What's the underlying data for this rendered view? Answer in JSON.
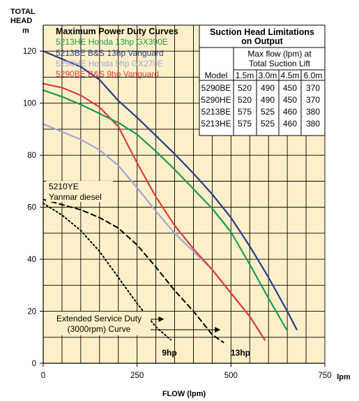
{
  "chart_data": {
    "type": "line",
    "xlabel": "FLOW (lpm)",
    "x_unit": "lpm",
    "ylabel": "TOTAL HEAD",
    "y_unit": "m",
    "xlim": [
      0,
      750
    ],
    "ylim": [
      0,
      130
    ],
    "x_ticks": [
      "0",
      "250",
      "500",
      "750"
    ],
    "y_ticks": [
      "0",
      "20",
      "40",
      "60",
      "80",
      "100",
      "120"
    ],
    "grid": true,
    "legend_title": "Maximum Power Duty Curves",
    "colors": {
      "background": "#fdf0c9",
      "grid": "#000000",
      "green": "#1a9a4c",
      "navy": "#263c8e",
      "lavender": "#a4a4d6",
      "red": "#e03b3b"
    },
    "series": [
      {
        "name": "5213HE Honda 13hp GX390E",
        "color": "#1a9a4c",
        "style": "solid",
        "x": [
          0,
          50,
          100,
          150,
          200,
          250,
          300,
          350,
          400,
          450,
          500,
          550,
          600,
          650
        ],
        "y": [
          105,
          102.5,
          99.5,
          96,
          92.5,
          88,
          81.5,
          74.5,
          67,
          59.5,
          50.5,
          38,
          25,
          12.5
        ]
      },
      {
        "name": "5213BE B&S 13hp Vanguard",
        "color": "#263c8e",
        "style": "solid",
        "x": [
          0,
          50,
          100,
          150,
          200,
          250,
          300,
          350,
          400,
          450,
          500,
          550,
          600,
          650,
          675
        ],
        "y": [
          120,
          117,
          114,
          109,
          101,
          94.5,
          87.5,
          80.5,
          73,
          65,
          56,
          45,
          33,
          20,
          13
        ]
      },
      {
        "name": "5290HE Honda 9hp GX270E",
        "color": "#a4a4d6",
        "style": "solid",
        "x": [
          0,
          50,
          100,
          150,
          200,
          250,
          300,
          350,
          400,
          450,
          500,
          550,
          590
        ],
        "y": [
          92,
          89,
          86,
          82,
          76,
          67.5,
          58.5,
          50,
          43,
          36,
          27,
          18,
          9
        ]
      },
      {
        "name": "5290BE B&S 9hp  Vanguard",
        "color": "#e03b3b",
        "style": "solid",
        "x": [
          0,
          50,
          100,
          150,
          200,
          250,
          300,
          350,
          400,
          450,
          500,
          550,
          590
        ],
        "y": [
          107.5,
          106,
          103,
          98.5,
          91,
          77,
          64,
          53,
          44,
          36,
          27,
          18,
          9
        ]
      },
      {
        "name": "5210YE Yanmar diesel",
        "color": "#000000",
        "style": "dashed",
        "x": [
          0,
          50,
          100,
          150,
          200,
          250,
          300,
          350,
          400,
          450,
          480
        ],
        "y": [
          63,
          61,
          59,
          56,
          52,
          45.5,
          37,
          28,
          20,
          11,
          8
        ]
      },
      {
        "name": "Extended Service Duty 9hp",
        "color": "#000000",
        "style": "dotted",
        "x": [
          0,
          50,
          100,
          150,
          200,
          250,
          300,
          340
        ],
        "y": [
          61.5,
          57,
          51,
          43,
          33,
          23,
          14,
          9
        ]
      }
    ],
    "annotations": [
      {
        "text": "5210YE",
        "style": "normal"
      },
      {
        "text": "Yanmar diesel",
        "style": "normal"
      },
      {
        "text": "Extended Service Duty",
        "style": "normal"
      },
      {
        "text": "(3000rpm) Curve",
        "style": "normal"
      },
      {
        "text": "9hp",
        "style": "bold"
      },
      {
        "text": "13hp",
        "style": "bold"
      }
    ]
  },
  "suction_table": {
    "title_line1": "Suction Head Limitations",
    "title_line2": "on Output",
    "subtitle_line1": "Max flow (lpm) at",
    "subtitle_line2": "Total Suction Lift",
    "model_header": "Model",
    "lift_headers": [
      "1.5m",
      "3.0m",
      "4.5m",
      "6.0m"
    ],
    "rows": [
      {
        "model": "5290BE",
        "values": [
          "520",
          "490",
          "450",
          "370"
        ]
      },
      {
        "model": "5290HE",
        "values": [
          "520",
          "490",
          "450",
          "370"
        ]
      },
      {
        "model": "5213BE",
        "values": [
          "575",
          "525",
          "460",
          "380"
        ]
      },
      {
        "model": "5213HE",
        "values": [
          "575",
          "525",
          "460",
          "380"
        ]
      }
    ]
  },
  "axis_titles": {
    "y_line1": "TOTAL",
    "y_line2": "HEAD",
    "y_unit": "m",
    "x_title": "FLOW (lpm)",
    "x_unit": "lpm"
  }
}
